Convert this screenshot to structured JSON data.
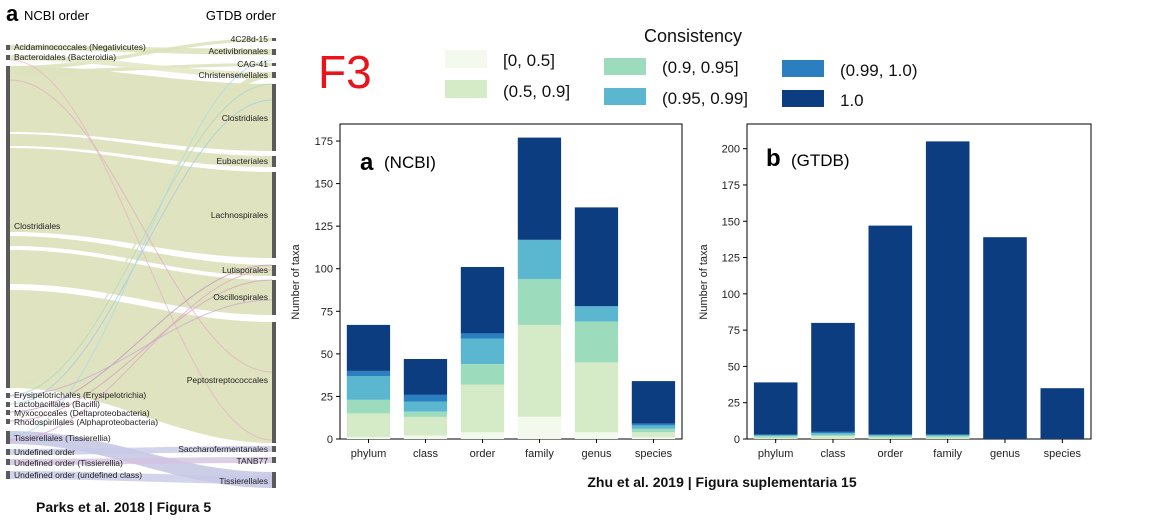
{
  "left_panel": {
    "panel_letter": "a",
    "left_header": "NCBI order",
    "right_header": "GTDB order",
    "ncbi_orders": [
      "Acidaminococcales (Negativicutes)",
      "Bacteroidales (Bacteroidia)",
      "Clostridiales",
      "Erysipelotrichales (Erysipelotrichia)",
      "Lactobacillales (Bacilli)",
      "Myxococcales (Deltaproteobacteria)",
      "Rhodospirillales (Alphaproteobacteria)",
      "Tissierellales (Tissierellia)",
      "Undefined order",
      "Undefined order (Tissierellia)",
      "Undefined order (undefined class)"
    ],
    "gtdb_orders": [
      "4C28d-15",
      "Acetivibrionales",
      "CAG-41",
      "Christensenellales",
      "Clostridiales",
      "Eubacteriales",
      "Lachnospirales",
      "Lutisporales",
      "Oscillospirales",
      "Peptostreptococcales",
      "Saccharofermentanales",
      "TANB77",
      "Tissierellales"
    ],
    "caption": "Parks et al. 2018 | Figura 5"
  },
  "f3_label": "F3",
  "legend": {
    "title": "Consistency",
    "items": [
      {
        "label": "[0, 0.5]",
        "color": "#f3f9ec"
      },
      {
        "label": "(0.5, 0.9]",
        "color": "#d5ebc8"
      },
      {
        "label": "(0.9, 0.95]",
        "color": "#9cdbbb"
      },
      {
        "label": "(0.95, 0.99]",
        "color": "#5bb7d0"
      },
      {
        "label": "(0.99, 1.0)",
        "color": "#2b7fc0"
      },
      {
        "label": "1.0",
        "color": "#0c3d80"
      }
    ]
  },
  "chart_data": [
    {
      "type": "bar",
      "stacked": true,
      "panel_letter": "a",
      "title": "(NCBI)",
      "ylabel": "Number of taxa",
      "xlabel": "",
      "ylim": [
        0,
        185
      ],
      "yticks": [
        0,
        25,
        50,
        75,
        100,
        125,
        150,
        175
      ],
      "categories": [
        "phylum",
        "class",
        "order",
        "family",
        "genus",
        "species"
      ],
      "series": [
        {
          "key": "[0, 0.5]",
          "values": [
            1,
            2,
            4,
            13,
            4,
            1
          ]
        },
        {
          "key": "(0.5, 0.9]",
          "values": [
            14,
            11,
            28,
            54,
            41,
            3
          ]
        },
        {
          "key": "(0.9, 0.95]",
          "values": [
            8,
            3,
            12,
            27,
            24,
            2
          ]
        },
        {
          "key": "(0.95, 0.99]",
          "values": [
            14,
            6,
            15,
            23,
            9,
            2
          ]
        },
        {
          "key": "(0.99, 1.0)",
          "values": [
            3,
            4,
            3,
            0,
            0,
            1
          ]
        },
        {
          "key": "1.0",
          "values": [
            27,
            21,
            39,
            60,
            58,
            25
          ]
        }
      ]
    },
    {
      "type": "bar",
      "stacked": true,
      "panel_letter": "b",
      "title": "(GTDB)",
      "ylabel": "Number of taxa",
      "xlabel": "",
      "ylim": [
        0,
        217
      ],
      "yticks": [
        0,
        25,
        50,
        75,
        100,
        125,
        150,
        175,
        200
      ],
      "categories": [
        "phylum",
        "class",
        "order",
        "family",
        "genus",
        "species"
      ],
      "series": [
        {
          "key": "[0, 0.5]",
          "values": [
            0,
            0,
            0,
            0,
            0,
            0
          ]
        },
        {
          "key": "(0.5, 0.9]",
          "values": [
            1,
            2,
            1,
            1,
            0,
            0
          ]
        },
        {
          "key": "(0.9, 0.95]",
          "values": [
            1,
            1,
            1,
            1,
            0,
            0
          ]
        },
        {
          "key": "(0.95, 0.99]",
          "values": [
            1,
            1,
            1,
            1,
            0,
            0
          ]
        },
        {
          "key": "(0.99, 1.0)",
          "values": [
            0,
            1,
            0,
            0,
            0,
            0
          ]
        },
        {
          "key": "1.0",
          "values": [
            36,
            75,
            144,
            202,
            139,
            35
          ]
        }
      ]
    }
  ],
  "right_caption": "Zhu et al. 2019 | Figura suplementaria 15"
}
